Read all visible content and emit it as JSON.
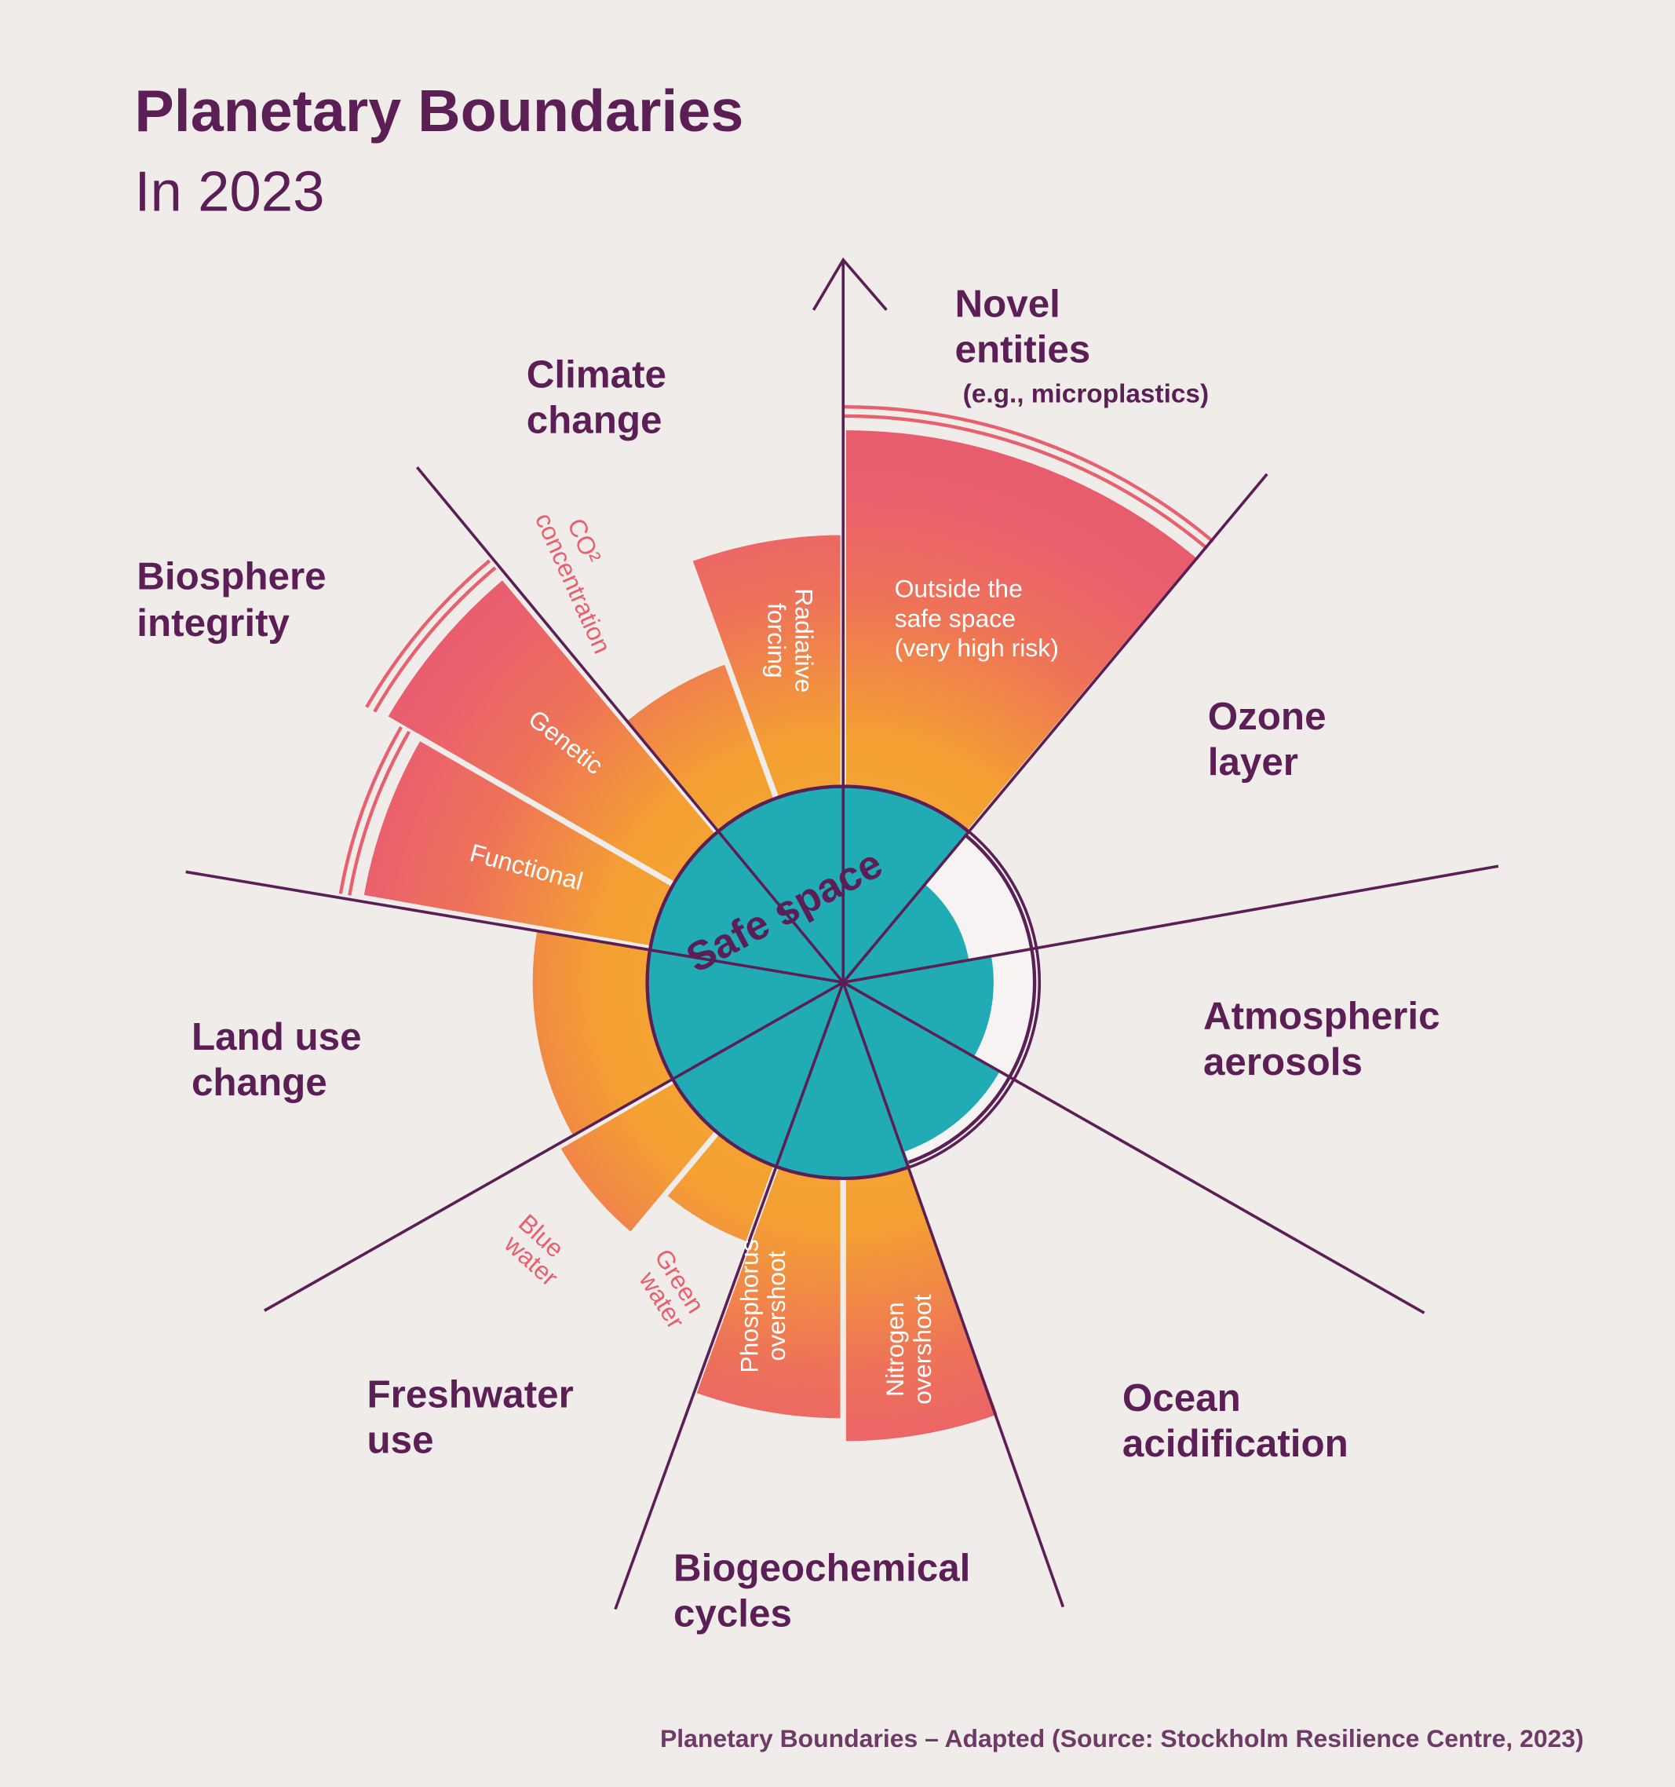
{
  "header": {
    "title": "Planetary Boundaries",
    "subtitle": "In 2023"
  },
  "safe_space": "Safe space",
  "boundaries": [
    {
      "label": [
        "Novel",
        "entities"
      ],
      "note": "(e.g., microplastics)",
      "zone_label": [
        "Outside the",
        "safe space",
        "(very high risk)"
      ]
    },
    {
      "label": [
        "Ozone",
        "layer"
      ]
    },
    {
      "label": [
        "Atmospheric",
        "aerosols"
      ]
    },
    {
      "label": [
        "Ocean",
        "acidification"
      ]
    },
    {
      "label": [
        "Biogeochemical",
        "cycles"
      ],
      "parts": [
        [
          "Nitrogen",
          "overshoot"
        ],
        [
          "Phosphorus",
          "overshoot"
        ]
      ]
    },
    {
      "label": [
        "Freshwater",
        "use"
      ],
      "parts": [
        [
          "Green",
          "water"
        ],
        [
          "Blue",
          "water"
        ]
      ]
    },
    {
      "label": [
        "Land use",
        "change"
      ]
    },
    {
      "label": [
        "Biosphere",
        "integrity"
      ],
      "parts": [
        [
          "Functional"
        ],
        [
          "Genetic"
        ]
      ]
    },
    {
      "label": [
        "Climate",
        "change"
      ],
      "parts": [
        [
          "CO²",
          "concentration"
        ],
        [
          "Radiative",
          "forcing"
        ]
      ]
    }
  ],
  "source": "Planetary Boundaries – Adapted (Source: Stockholm Resilience Centre, 2023)"
}
